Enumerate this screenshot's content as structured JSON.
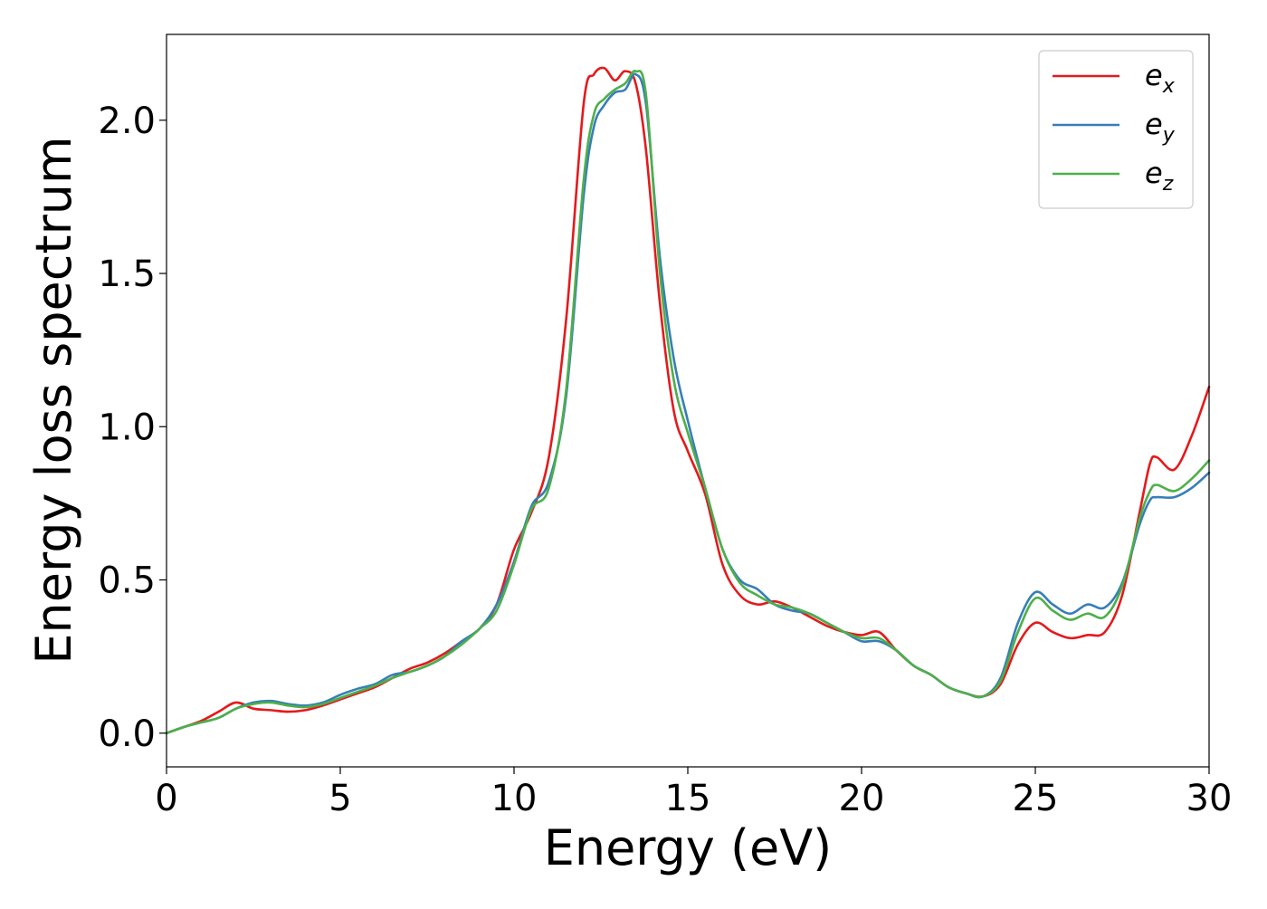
{
  "chart_data": {
    "type": "line",
    "title": "",
    "xlabel": "Energy (eV)",
    "ylabel": "Energy loss spectrum",
    "xlim": [
      0,
      30
    ],
    "ylim": [
      -0.11,
      2.28
    ],
    "xticks": [
      0,
      5,
      10,
      15,
      20,
      25,
      30
    ],
    "xtick_labels": [
      "0",
      "5",
      "10",
      "15",
      "20",
      "25",
      "30"
    ],
    "yticks": [
      0.0,
      0.5,
      1.0,
      1.5,
      2.0
    ],
    "ytick_labels": [
      "0.0",
      "0.5",
      "1.0",
      "1.5",
      "2.0"
    ],
    "grid": false,
    "legend_position": "top-right",
    "series": [
      {
        "name": "e_x",
        "label_base": "e",
        "label_sub": "x",
        "color": "#e41a1c",
        "x": [
          0,
          0.5,
          1,
          1.5,
          2,
          2.5,
          3,
          3.5,
          4,
          4.5,
          5,
          5.5,
          6,
          6.5,
          7,
          7.5,
          8,
          8.5,
          9,
          9.5,
          10,
          10.5,
          11,
          11.5,
          12,
          12.3,
          12.6,
          12.9,
          13.2,
          13.5,
          13.8,
          14.2,
          14.6,
          15,
          15.5,
          16,
          16.5,
          17,
          17.5,
          18,
          18.5,
          19,
          19.5,
          20,
          20.5,
          21,
          21.5,
          22,
          22.5,
          23,
          23.5,
          24,
          24.5,
          25,
          25.5,
          26,
          26.5,
          27,
          27.5,
          28,
          28.3,
          28.5,
          29,
          29.5,
          30
        ],
        "y": [
          0.0,
          0.02,
          0.04,
          0.07,
          0.1,
          0.08,
          0.075,
          0.07,
          0.075,
          0.09,
          0.11,
          0.13,
          0.15,
          0.18,
          0.21,
          0.23,
          0.26,
          0.3,
          0.34,
          0.42,
          0.6,
          0.72,
          0.9,
          1.35,
          2.05,
          2.15,
          2.17,
          2.13,
          2.16,
          2.12,
          1.9,
          1.4,
          1.05,
          0.92,
          0.78,
          0.55,
          0.45,
          0.42,
          0.43,
          0.41,
          0.38,
          0.35,
          0.33,
          0.32,
          0.33,
          0.27,
          0.22,
          0.19,
          0.15,
          0.13,
          0.12,
          0.16,
          0.29,
          0.36,
          0.33,
          0.31,
          0.32,
          0.33,
          0.45,
          0.72,
          0.88,
          0.9,
          0.86,
          0.97,
          1.13
        ]
      },
      {
        "name": "e_y",
        "label_base": "e",
        "label_sub": "y",
        "color": "#377eb8",
        "x": [
          0,
          0.5,
          1,
          1.5,
          2,
          2.5,
          3,
          3.5,
          4,
          4.5,
          5,
          5.5,
          6,
          6.5,
          7,
          7.5,
          8,
          8.5,
          9,
          9.5,
          10,
          10.5,
          11,
          11.5,
          12,
          12.3,
          12.6,
          12.9,
          13.2,
          13.5,
          13.8,
          14.2,
          14.6,
          15,
          15.5,
          16,
          16.5,
          17,
          17.5,
          18,
          18.5,
          19,
          19.5,
          20,
          20.5,
          21,
          21.5,
          22,
          22.5,
          23,
          23.5,
          24,
          24.5,
          25,
          25.5,
          26,
          26.5,
          27,
          27.5,
          28,
          28.3,
          28.5,
          29,
          29.5,
          30
        ],
        "y": [
          0.0,
          0.02,
          0.035,
          0.05,
          0.08,
          0.1,
          0.105,
          0.095,
          0.09,
          0.1,
          0.125,
          0.145,
          0.16,
          0.19,
          0.2,
          0.22,
          0.25,
          0.3,
          0.34,
          0.42,
          0.56,
          0.74,
          0.82,
          1.1,
          1.75,
          1.98,
          2.05,
          2.09,
          2.1,
          2.15,
          2.05,
          1.55,
          1.22,
          1.02,
          0.8,
          0.6,
          0.5,
          0.47,
          0.42,
          0.4,
          0.39,
          0.36,
          0.33,
          0.3,
          0.3,
          0.27,
          0.22,
          0.19,
          0.15,
          0.13,
          0.12,
          0.18,
          0.36,
          0.46,
          0.42,
          0.39,
          0.42,
          0.41,
          0.49,
          0.68,
          0.76,
          0.77,
          0.77,
          0.8,
          0.85
        ]
      },
      {
        "name": "e_z",
        "label_base": "e",
        "label_sub": "z",
        "color": "#4daf4a",
        "x": [
          0,
          0.5,
          1,
          1.5,
          2,
          2.5,
          3,
          3.5,
          4,
          4.5,
          5,
          5.5,
          6,
          6.5,
          7,
          7.5,
          8,
          8.5,
          9,
          9.5,
          10,
          10.5,
          11,
          11.5,
          12,
          12.3,
          12.6,
          12.9,
          13.2,
          13.5,
          13.8,
          14.2,
          14.6,
          15,
          15.5,
          16,
          16.5,
          17,
          17.5,
          18,
          18.5,
          19,
          19.5,
          20,
          20.5,
          21,
          21.5,
          22,
          22.5,
          23,
          23.5,
          24,
          24.5,
          25,
          25.5,
          26,
          26.5,
          27,
          27.5,
          28,
          28.3,
          28.5,
          29,
          29.5,
          30
        ],
        "y": [
          0.0,
          0.02,
          0.035,
          0.05,
          0.08,
          0.095,
          0.1,
          0.09,
          0.085,
          0.095,
          0.115,
          0.135,
          0.155,
          0.18,
          0.2,
          0.22,
          0.25,
          0.29,
          0.34,
          0.4,
          0.55,
          0.73,
          0.8,
          1.12,
          1.8,
          2.02,
          2.07,
          2.1,
          2.12,
          2.16,
          2.08,
          1.5,
          1.15,
          0.98,
          0.8,
          0.6,
          0.49,
          0.45,
          0.42,
          0.41,
          0.39,
          0.36,
          0.33,
          0.31,
          0.31,
          0.27,
          0.22,
          0.19,
          0.15,
          0.13,
          0.12,
          0.17,
          0.33,
          0.44,
          0.4,
          0.37,
          0.39,
          0.38,
          0.48,
          0.7,
          0.79,
          0.81,
          0.79,
          0.83,
          0.89
        ]
      }
    ]
  }
}
